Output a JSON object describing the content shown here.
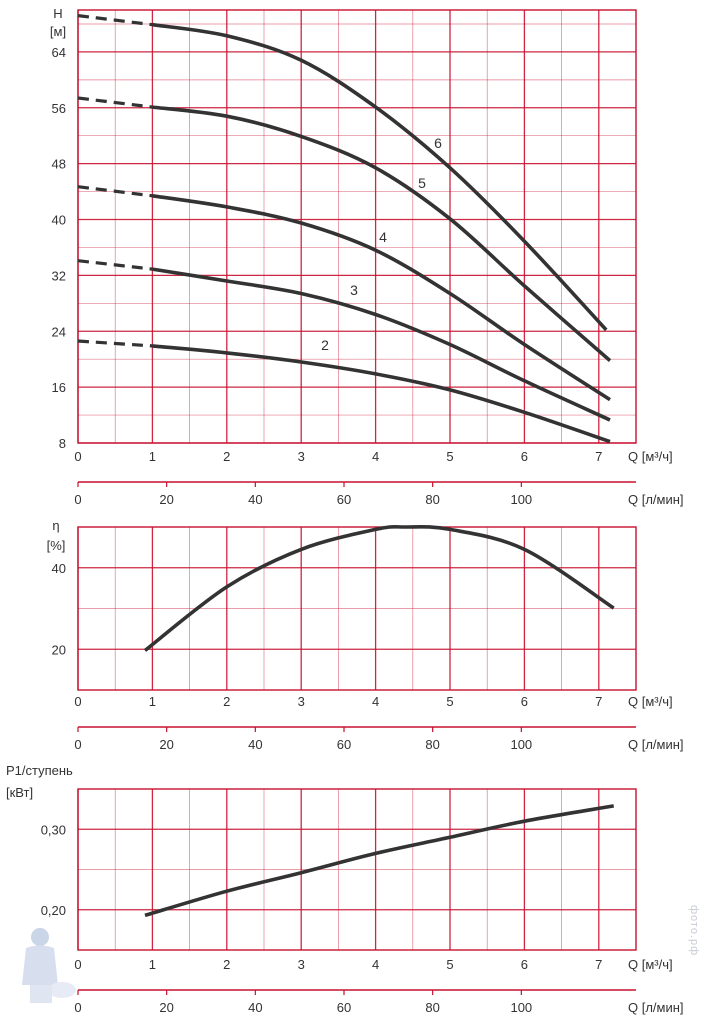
{
  "colors": {
    "grid": "#c8102e",
    "curve": "#333333",
    "text": "#333333"
  },
  "watermark": {
    "text": "фото.рф"
  },
  "chart_data": [
    {
      "type": "line",
      "title": "",
      "ylabel": [
        "H",
        "[м]"
      ],
      "xlabel": "Q [м³/ч]",
      "xlabel2": "Q [л/мин]",
      "xlim": [
        0,
        7.5
      ],
      "ylim": [
        8,
        70
      ],
      "yticks": [
        8,
        16,
        24,
        32,
        40,
        48,
        56,
        64
      ],
      "xticks": [
        0,
        1,
        2,
        3,
        4,
        5,
        6,
        7
      ],
      "xticks2": [
        0,
        20,
        40,
        60,
        80,
        100
      ],
      "grid": true,
      "series": [
        {
          "name": "2",
          "dashed": [
            [
              0,
              22.6
            ],
            [
              1,
              21.9
            ]
          ],
          "points": [
            [
              1,
              21.9
            ],
            [
              2,
              20.9
            ],
            [
              3,
              19.6
            ],
            [
              4,
              17.9
            ],
            [
              5,
              15.6
            ],
            [
              6,
              12.4
            ],
            [
              7.15,
              8.2
            ]
          ]
        },
        {
          "name": "3",
          "dashed": [
            [
              0,
              34.1
            ],
            [
              1,
              32.9
            ]
          ],
          "points": [
            [
              1,
              32.9
            ],
            [
              2,
              31.2
            ],
            [
              3,
              29.4
            ],
            [
              4,
              26.4
            ],
            [
              5,
              22.1
            ],
            [
              6,
              16.9
            ],
            [
              7.15,
              11.3
            ]
          ]
        },
        {
          "name": "4",
          "dashed": [
            [
              0,
              44.7
            ],
            [
              1,
              43.4
            ]
          ],
          "points": [
            [
              1,
              43.4
            ],
            [
              2,
              41.8
            ],
            [
              3,
              39.5
            ],
            [
              4,
              35.6
            ],
            [
              5,
              29.4
            ],
            [
              6,
              22.1
            ],
            [
              7.15,
              14.2
            ]
          ]
        },
        {
          "name": "5",
          "dashed": [
            [
              0,
              57.4
            ],
            [
              1,
              56.1
            ]
          ],
          "points": [
            [
              1,
              56.1
            ],
            [
              2,
              54.8
            ],
            [
              3,
              51.9
            ],
            [
              4,
              47.4
            ],
            [
              5,
              40.1
            ],
            [
              6,
              30.5
            ],
            [
              7.15,
              19.8
            ]
          ]
        },
        {
          "name": "6",
          "dashed": [
            [
              0,
              69.2
            ],
            [
              1,
              67.9
            ]
          ],
          "points": [
            [
              1,
              67.9
            ],
            [
              2,
              66.3
            ],
            [
              3,
              62.8
            ],
            [
              4,
              56.1
            ],
            [
              5,
              47.4
            ],
            [
              6,
              36.9
            ],
            [
              7.1,
              24.2
            ]
          ]
        }
      ]
    },
    {
      "type": "line",
      "title": "",
      "ylabel": [
        "η",
        "[%]"
      ],
      "xlabel": "Q [м³/ч]",
      "xlabel2": "Q [л/мин]",
      "xlim": [
        0,
        7.5
      ],
      "ylim": [
        10,
        50
      ],
      "yticks": [
        20,
        40
      ],
      "xticks": [
        0,
        1,
        2,
        3,
        4,
        5,
        6,
        7
      ],
      "xticks2": [
        0,
        20,
        40,
        60,
        80,
        100
      ],
      "grid": true,
      "series": [
        {
          "points": [
            [
              0.9,
              19.7
            ],
            [
              2,
              35.3
            ],
            [
              3,
              44.5
            ],
            [
              4,
              49.4
            ],
            [
              4.4,
              50
            ],
            [
              5,
              49.4
            ],
            [
              6,
              44.5
            ],
            [
              7.2,
              30.1
            ]
          ]
        }
      ]
    },
    {
      "type": "line",
      "title": "",
      "ylabel": [
        "P1/ступень",
        "[кВт]"
      ],
      "xlabel": "Q [м³/ч]",
      "xlabel2": "Q [л/мин]",
      "xlim": [
        0,
        7.5
      ],
      "ylim": [
        0.15,
        0.35
      ],
      "yticks": [
        0.2,
        0.3
      ],
      "ytick_labels": [
        "0,20",
        "0,30"
      ],
      "xticks": [
        0,
        1,
        2,
        3,
        4,
        5,
        6,
        7
      ],
      "xticks2": [
        0,
        20,
        40,
        60,
        80,
        100
      ],
      "grid": true,
      "series": [
        {
          "points": [
            [
              0.9,
              0.193
            ],
            [
              2,
              0.223
            ],
            [
              3,
              0.246
            ],
            [
              4,
              0.27
            ],
            [
              5,
              0.29
            ],
            [
              6,
              0.31
            ],
            [
              7.2,
              0.329
            ]
          ]
        }
      ]
    }
  ]
}
